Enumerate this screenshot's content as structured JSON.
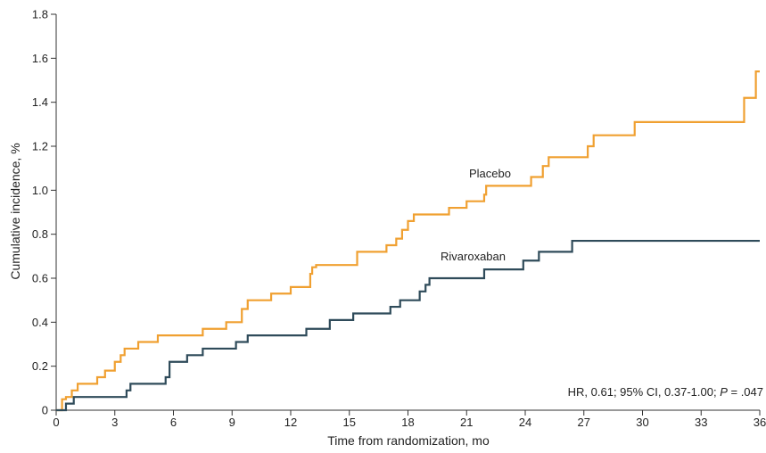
{
  "chart_data": {
    "type": "line",
    "step": true,
    "xlabel": "Time from randomization, mo",
    "ylabel": "Cumulative incidence, %",
    "xlim": [
      0,
      36
    ],
    "ylim": [
      0,
      1.8
    ],
    "xticks": [
      0,
      3,
      6,
      9,
      12,
      15,
      18,
      21,
      24,
      27,
      30,
      33,
      36
    ],
    "xtick_labels": [
      "0",
      "3",
      "6",
      "9",
      "12",
      "15",
      "18",
      "21",
      "24",
      "27",
      "30",
      "33",
      "36"
    ],
    "yticks": [
      0,
      0.2,
      0.4,
      0.6,
      0.8,
      1.0,
      1.2,
      1.4,
      1.6,
      1.8
    ],
    "ytick_labels": [
      "0",
      "0.2",
      "0.4",
      "0.6",
      "0.8",
      "1.0",
      "1.2",
      "1.4",
      "1.6",
      "1.8"
    ],
    "grid": false,
    "annotation": {
      "prefix": "HR, 0.61; 95% CI, 0.37-1.00; ",
      "italic": "P",
      "suffix": " = .047"
    },
    "series": [
      {
        "name": "Placebo",
        "color": "#F0A031",
        "x": [
          0,
          0.3,
          0.5,
          0.8,
          1.1,
          2.1,
          2.5,
          2.8,
          3.0,
          3.3,
          3.5,
          4.2,
          5.2,
          7.5,
          8.7,
          9.5,
          9.8,
          11.0,
          12.0,
          13.0,
          13.1,
          13.3,
          15.4,
          16.9,
          17.4,
          17.7,
          18.0,
          18.3,
          20.1,
          21.0,
          21.9,
          22.0,
          24.3,
          24.9,
          25.2,
          27.2,
          27.5,
          29.6,
          35.2,
          35.8,
          36.0
        ],
        "y": [
          0,
          0.05,
          0.06,
          0.09,
          0.12,
          0.15,
          0.18,
          0.18,
          0.22,
          0.25,
          0.28,
          0.31,
          0.34,
          0.37,
          0.4,
          0.46,
          0.5,
          0.53,
          0.56,
          0.62,
          0.65,
          0.66,
          0.72,
          0.75,
          0.78,
          0.82,
          0.86,
          0.89,
          0.92,
          0.95,
          0.98,
          1.02,
          1.06,
          1.11,
          1.15,
          1.2,
          1.25,
          1.31,
          1.42,
          1.54,
          1.54
        ]
      },
      {
        "name": "Rivaroxaban",
        "color": "#2F4B5A",
        "x": [
          0,
          0.5,
          0.9,
          3.6,
          3.8,
          5.6,
          5.8,
          6.7,
          7.5,
          9.2,
          9.8,
          12.8,
          14.0,
          15.2,
          17.1,
          17.6,
          18.6,
          18.9,
          19.1,
          21.9,
          23.9,
          24.7,
          26.4,
          36.0
        ],
        "y": [
          0,
          0.03,
          0.06,
          0.09,
          0.12,
          0.15,
          0.22,
          0.25,
          0.28,
          0.31,
          0.34,
          0.37,
          0.41,
          0.44,
          0.47,
          0.5,
          0.54,
          0.57,
          0.6,
          0.64,
          0.68,
          0.72,
          0.77,
          0.77
        ]
      }
    ]
  }
}
